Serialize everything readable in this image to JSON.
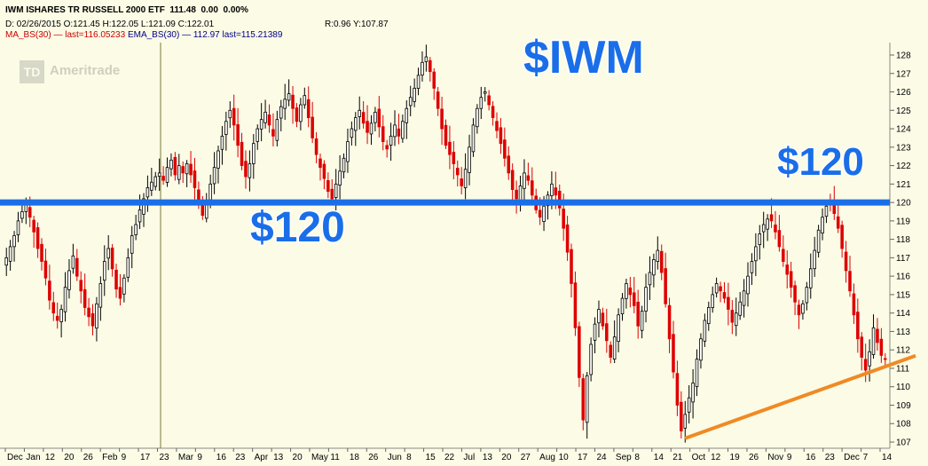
{
  "header": {
    "title": "IWM ISHARES TR RUSSELL 2000 ETF",
    "last": "111.48",
    "change": "0.00",
    "change_pct": "0.00%",
    "ohlc_line": "D: 02/26/2015 O:121.45 H:122.05 L:121.09 C:122.01",
    "rv_line": "R:0.96 Y:107.87",
    "ma_line": "MA_BS(30) — last=116.05233",
    "ema_line": "EMA_BS(30) — 112.97 last=115.21389"
  },
  "logo": {
    "mark": "TD",
    "text": "Ameritrade"
  },
  "annotations": {
    "ticker": "$IWM",
    "level_left": "$120",
    "level_right": "$120"
  },
  "colors": {
    "background": "#fbfbe6",
    "up_candle": "#000000",
    "down_candle": "#dd0000",
    "support_line": "#1a6ee8",
    "trend_line": "#f08a24",
    "label": "#1a6ee8"
  },
  "chart_data": {
    "type": "candlestick",
    "ylim": [
      107,
      128
    ],
    "y_ticks": [
      107,
      108,
      109,
      110,
      111,
      112,
      113,
      114,
      115,
      116,
      117,
      118,
      119,
      120,
      121,
      122,
      123,
      124,
      125,
      126,
      127,
      128
    ],
    "x_tick_labels": [
      "Dec",
      "Jan",
      "12",
      "20",
      "26",
      "Feb",
      "9",
      "17",
      "23",
      "Mar",
      "9",
      "16",
      "23",
      "Apr",
      "13",
      "20",
      "May",
      "11",
      "18",
      "26",
      "Jun",
      "8",
      "15",
      "22",
      "Jul",
      "13",
      "20",
      "27",
      "Aug",
      "10",
      "17",
      "24",
      "Sep",
      "8",
      "14",
      "21",
      "Oct",
      "12",
      "19",
      "26",
      "Nov",
      "9",
      "16",
      "23",
      "Dec",
      "7",
      "14"
    ],
    "horizontal_line": {
      "value": 120
    },
    "trend_line": {
      "from": {
        "x": "Sep 29",
        "y": 107.2
      },
      "to": {
        "x": "Dec 18",
        "y": 111.3
      }
    },
    "cursor_date": "02/26/2015",
    "closes": [
      117.0,
      117.6,
      118.2,
      119.0,
      119.5,
      119.9,
      119.2,
      118.4,
      117.5,
      116.8,
      115.9,
      114.7,
      114.0,
      113.6,
      114.2,
      115.4,
      116.3,
      117.1,
      116.0,
      115.2,
      114.3,
      113.8,
      113.3,
      114.5,
      115.6,
      116.8,
      117.5,
      116.4,
      115.3,
      114.8,
      115.9,
      117.0,
      118.2,
      118.8,
      119.6,
      120.2,
      120.8,
      121.1,
      121.4,
      121.6,
      121.2,
      121.9,
      122.3,
      121.5,
      122.0,
      121.6,
      122.1,
      121.5,
      120.8,
      119.9,
      119.3,
      120.1,
      121.0,
      121.9,
      122.8,
      123.6,
      124.4,
      125.0,
      124.2,
      123.1,
      122.0,
      121.4,
      122.1,
      123.2,
      124.0,
      124.5,
      124.9,
      124.2,
      123.6,
      124.5,
      125.2,
      125.6,
      125.9,
      125.1,
      124.4,
      125.3,
      125.8,
      124.6,
      123.5,
      122.6,
      121.9,
      121.3,
      120.6,
      120.2,
      121.0,
      121.7,
      122.4,
      123.3,
      124.0,
      124.6,
      125.0,
      124.3,
      123.8,
      124.3,
      124.9,
      124.1,
      123.3,
      122.9,
      123.6,
      124.2,
      123.6,
      124.4,
      125.1,
      125.7,
      126.2,
      126.9,
      127.6,
      127.9,
      127.1,
      126.2,
      125.1,
      124.0,
      123.1,
      122.6,
      122.1,
      121.5,
      120.9,
      121.8,
      123.0,
      124.2,
      125.1,
      125.7,
      126.0,
      125.3,
      124.6,
      123.9,
      123.2,
      122.4,
      121.6,
      120.7,
      120.2,
      120.9,
      121.6,
      121.2,
      120.4,
      119.6,
      119.2,
      119.8,
      120.4,
      121.0,
      120.4,
      119.7,
      118.6,
      117.3,
      115.6,
      113.2,
      110.5,
      108.2,
      110.6,
      112.3,
      113.4,
      114.2,
      113.3,
      112.5,
      111.6,
      112.7,
      113.9,
      114.8,
      115.6,
      115.0,
      114.4,
      113.3,
      114.1,
      115.4,
      116.2,
      116.9,
      117.4,
      116.2,
      114.5,
      112.6,
      110.8,
      109.0,
      107.6,
      108.5,
      109.4,
      110.2,
      111.5,
      112.6,
      113.6,
      114.3,
      115.0,
      115.6,
      115.2,
      114.8,
      114.2,
      113.5,
      114.0,
      114.6,
      115.2,
      116.0,
      116.8,
      117.6,
      118.3,
      118.8,
      119.1,
      119.0,
      118.4,
      117.6,
      116.8,
      116.1,
      115.4,
      114.6,
      113.9,
      114.5,
      115.4,
      116.4,
      117.4,
      118.5,
      119.2,
      119.8,
      120.0,
      119.4,
      118.6,
      117.5,
      116.3,
      115.2,
      113.9,
      112.6,
      111.6,
      110.9,
      111.9,
      113.2,
      112.4,
      111.7,
      111.5
    ]
  }
}
